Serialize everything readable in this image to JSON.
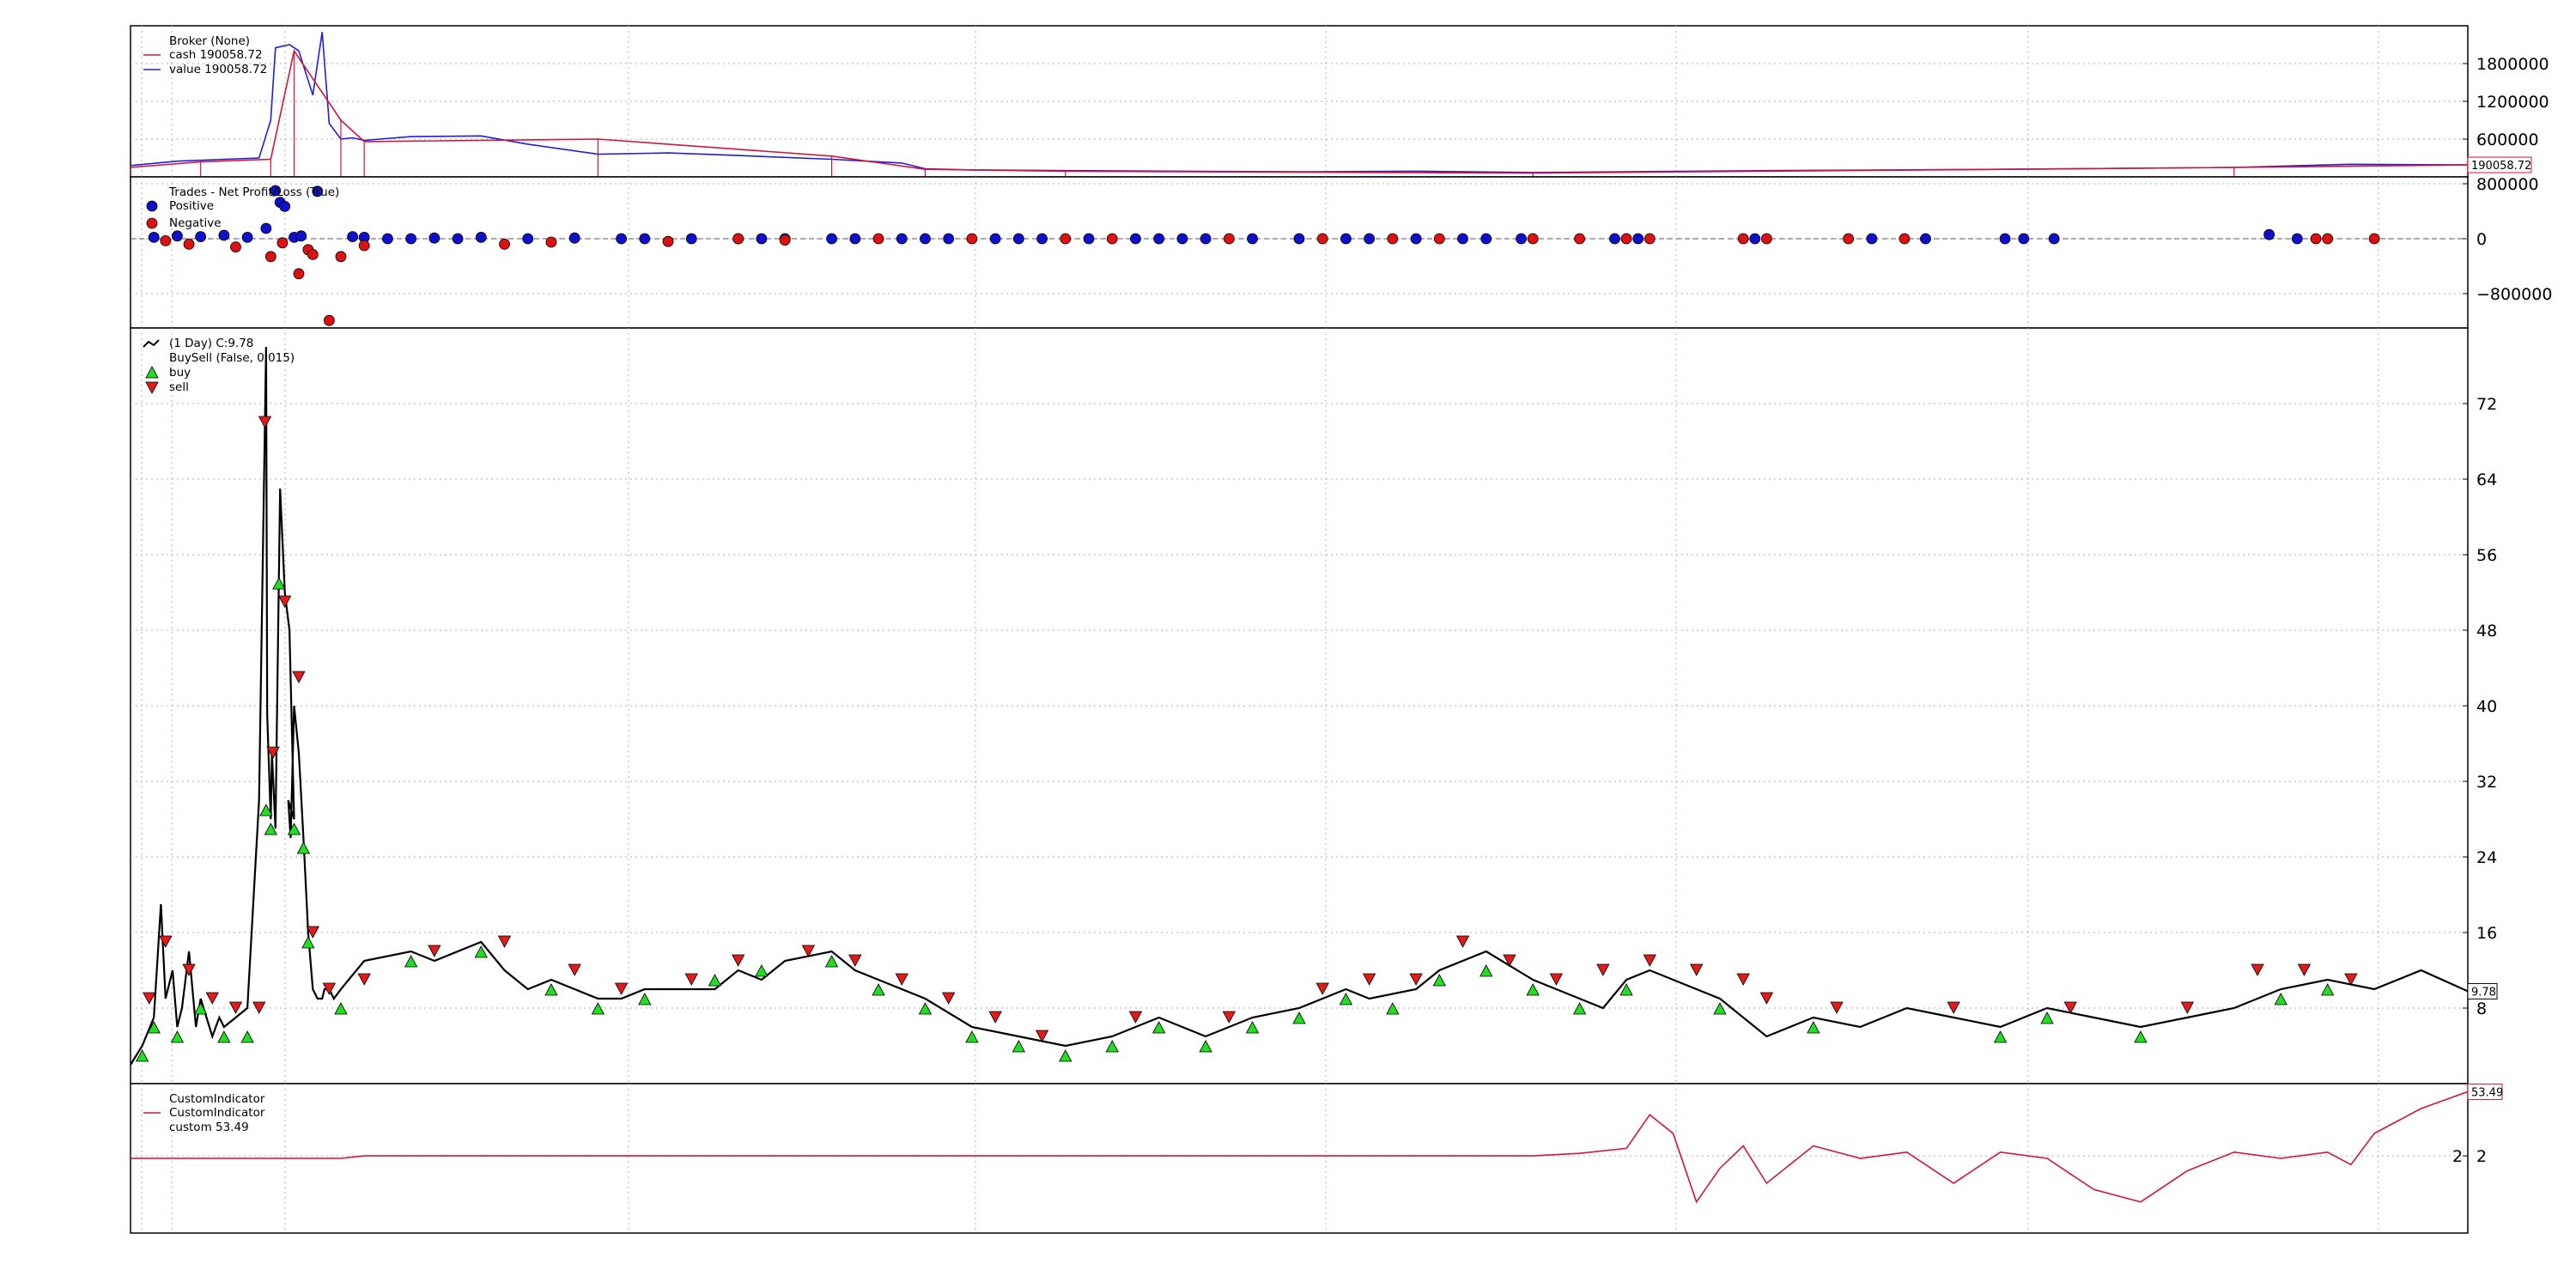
{
  "colors": {
    "cash": "#d2143c",
    "value": "#1f1fd8",
    "close": "#000000",
    "buy": "#22dd22",
    "sell": "#e21a1a",
    "positive": "#1010cc",
    "negative": "#dd1111",
    "custom": "#d2143c",
    "grid": "#b0b0b0"
  },
  "chart_data": [
    {
      "id": "broker",
      "type": "line",
      "title": "Broker (None)",
      "legend": [
        {
          "label": "cash 190058.72",
          "color": "#d2143c"
        },
        {
          "label": "value 190058.72",
          "color": "#1f1fd8"
        }
      ],
      "ylim": [
        0,
        2400000
      ],
      "yticks": [
        600000,
        1200000,
        1800000
      ],
      "ytick_labels": [
        "600000",
        "1200000",
        "1800000"
      ],
      "last_value_label": "190058.72",
      "series": [
        {
          "name": "value",
          "x": [
            0,
            0.02,
            0.04,
            0.055,
            0.06,
            0.062,
            0.068,
            0.072,
            0.078,
            0.082,
            0.085,
            0.09,
            0.095,
            0.1,
            0.12,
            0.15,
            0.17,
            0.2,
            0.23,
            0.26,
            0.3,
            0.33,
            0.34,
            0.36,
            0.4,
            0.45,
            0.5,
            0.55,
            0.6,
            0.7,
            0.8,
            0.9,
            0.95,
            1.0
          ],
          "values": [
            180000,
            250000,
            280000,
            300000,
            900000,
            2050000,
            2100000,
            2000000,
            1300000,
            2300000,
            850000,
            600000,
            620000,
            580000,
            640000,
            650000,
            520000,
            360000,
            380000,
            340000,
            280000,
            220000,
            130000,
            110000,
            100000,
            90000,
            80000,
            90000,
            70000,
            100000,
            120000,
            150000,
            200000,
            190058
          ]
        },
        {
          "name": "cash",
          "x": [
            0,
            0.03,
            0.06,
            0.07,
            0.09,
            0.1,
            0.2,
            0.3,
            0.34,
            0.4,
            0.6,
            0.9,
            1.0
          ],
          "values": [
            150000,
            240000,
            280000,
            2000000,
            900000,
            560000,
            600000,
            330000,
            120000,
            90000,
            60000,
            150000,
            190058
          ]
        }
      ]
    },
    {
      "id": "trades",
      "type": "scatter",
      "title": "Trades - Net Profit/Loss (True)",
      "legend": [
        {
          "label": "Positive",
          "color": "#1010cc"
        },
        {
          "label": "Negative",
          "color": "#dd1111"
        }
      ],
      "ylim": [
        -1300000,
        900000
      ],
      "yticks": [
        -800000,
        0,
        800000
      ],
      "ytick_labels": [
        "−800000",
        "0",
        "800000"
      ],
      "positive_points": [
        [
          0.01,
          20000
        ],
        [
          0.02,
          40000
        ],
        [
          0.03,
          30000
        ],
        [
          0.04,
          50000
        ],
        [
          0.05,
          20000
        ],
        [
          0.058,
          150000
        ],
        [
          0.062,
          700000
        ],
        [
          0.064,
          530000
        ],
        [
          0.066,
          470000
        ],
        [
          0.07,
          20000
        ],
        [
          0.073,
          40000
        ],
        [
          0.08,
          690000
        ],
        [
          0.095,
          30000
        ],
        [
          0.1,
          20000
        ],
        [
          0.11,
          0
        ],
        [
          0.12,
          0
        ],
        [
          0.13,
          10000
        ],
        [
          0.14,
          0
        ],
        [
          0.15,
          20000
        ],
        [
          0.17,
          0
        ],
        [
          0.19,
          10000
        ],
        [
          0.21,
          0
        ],
        [
          0.22,
          0
        ],
        [
          0.24,
          0
        ],
        [
          0.26,
          0
        ],
        [
          0.27,
          0
        ],
        [
          0.28,
          0
        ],
        [
          0.3,
          0
        ],
        [
          0.31,
          0
        ],
        [
          0.33,
          0
        ],
        [
          0.34,
          0
        ],
        [
          0.35,
          0
        ],
        [
          0.37,
          0
        ],
        [
          0.38,
          0
        ],
        [
          0.39,
          0
        ],
        [
          0.41,
          0
        ],
        [
          0.43,
          0
        ],
        [
          0.44,
          0
        ],
        [
          0.45,
          0
        ],
        [
          0.46,
          0
        ],
        [
          0.48,
          0
        ],
        [
          0.5,
          0
        ],
        [
          0.52,
          0
        ],
        [
          0.53,
          0
        ],
        [
          0.55,
          0
        ],
        [
          0.57,
          0
        ],
        [
          0.58,
          0
        ],
        [
          0.595,
          0
        ],
        [
          0.635,
          0
        ],
        [
          0.645,
          0
        ],
        [
          0.695,
          0
        ],
        [
          0.745,
          0
        ],
        [
          0.768,
          0
        ],
        [
          0.802,
          0
        ],
        [
          0.81,
          0
        ],
        [
          0.823,
          0
        ],
        [
          0.915,
          60000
        ],
        [
          0.927,
          0
        ]
      ],
      "negative_points": [
        [
          0.015,
          -30000
        ],
        [
          0.025,
          -80000
        ],
        [
          0.045,
          -120000
        ],
        [
          0.06,
          -260000
        ],
        [
          0.065,
          -60000
        ],
        [
          0.072,
          -510000
        ],
        [
          0.076,
          -160000
        ],
        [
          0.078,
          -230000
        ],
        [
          0.085,
          -1190000
        ],
        [
          0.09,
          -260000
        ],
        [
          0.1,
          -100000
        ],
        [
          0.16,
          -80000
        ],
        [
          0.18,
          -50000
        ],
        [
          0.23,
          -40000
        ],
        [
          0.26,
          0
        ],
        [
          0.28,
          -20000
        ],
        [
          0.32,
          0
        ],
        [
          0.36,
          0
        ],
        [
          0.4,
          0
        ],
        [
          0.42,
          0
        ],
        [
          0.47,
          0
        ],
        [
          0.51,
          0
        ],
        [
          0.54,
          0
        ],
        [
          0.56,
          0
        ],
        [
          0.6,
          0
        ],
        [
          0.62,
          0
        ],
        [
          0.64,
          0
        ],
        [
          0.65,
          0
        ],
        [
          0.69,
          0
        ],
        [
          0.7,
          0
        ],
        [
          0.735,
          0
        ],
        [
          0.759,
          0
        ],
        [
          0.935,
          0
        ],
        [
          0.94,
          0
        ],
        [
          0.96,
          0
        ]
      ]
    },
    {
      "id": "price",
      "type": "line",
      "title": "(1 Day) C:9.78",
      "legend": [
        {
          "label": "(1 Day) C:9.78",
          "color": "#000000",
          "marker": "line"
        },
        {
          "label": "BuySell (False, 0.015)",
          "color": "#000000",
          "marker": "none"
        },
        {
          "label": "buy",
          "color": "#22dd22",
          "marker": "triangle-up"
        },
        {
          "label": "sell",
          "color": "#e21a1a",
          "marker": "triangle-down"
        }
      ],
      "ylim": [
        0,
        80
      ],
      "yticks": [
        8,
        16,
        24,
        32,
        40,
        48,
        56,
        64,
        72
      ],
      "ytick_labels": [
        "8",
        "16",
        "24",
        "32",
        "40",
        "48",
        "56",
        "64",
        "72"
      ],
      "last_value_label": "9.78",
      "series": [
        {
          "name": "close",
          "x": [
            0,
            0.005,
            0.01,
            0.013,
            0.015,
            0.018,
            0.02,
            0.022,
            0.025,
            0.028,
            0.03,
            0.035,
            0.038,
            0.04,
            0.045,
            0.05,
            0.055,
            0.058,
            0.0585,
            0.06,
            0.0605,
            0.062,
            0.064,
            0.066,
            0.068,
            0.07,
            0.0675,
            0.0685,
            0.07,
            0.072,
            0.074,
            0.076,
            0.078,
            0.08,
            0.082,
            0.083,
            0.085,
            0.087,
            0.09,
            0.1,
            0.12,
            0.13,
            0.15,
            0.16,
            0.17,
            0.18,
            0.2,
            0.21,
            0.22,
            0.25,
            0.26,
            0.27,
            0.28,
            0.3,
            0.31,
            0.32,
            0.34,
            0.36,
            0.38,
            0.4,
            0.42,
            0.44,
            0.46,
            0.48,
            0.5,
            0.52,
            0.53,
            0.55,
            0.56,
            0.58,
            0.6,
            0.62,
            0.63,
            0.64,
            0.65,
            0.66,
            0.67,
            0.68,
            0.7,
            0.72,
            0.74,
            0.76,
            0.78,
            0.8,
            0.82,
            0.84,
            0.86,
            0.88,
            0.9,
            0.92,
            0.94,
            0.96,
            0.98,
            1.0
          ],
          "values": [
            2,
            4,
            7,
            19,
            9,
            12,
            6,
            8,
            14,
            6,
            9,
            5,
            7,
            6,
            7,
            8,
            30,
            78,
            39,
            28,
            35,
            27,
            63,
            52,
            48,
            28,
            30,
            26,
            40,
            35,
            26,
            16,
            10,
            9,
            9,
            10,
            10,
            9,
            10,
            13,
            14,
            13,
            15,
            12,
            10,
            11,
            9,
            9,
            10,
            10,
            12,
            11,
            13,
            14,
            12,
            11,
            9,
            6,
            5,
            4,
            5,
            7,
            5,
            7,
            8,
            10,
            9,
            10,
            12,
            14,
            11,
            9,
            8,
            11,
            12,
            11,
            10,
            9,
            5,
            7,
            6,
            8,
            7,
            6,
            8,
            7,
            6,
            7,
            8,
            10,
            11,
            10,
            12,
            9.78
          ]
        }
      ],
      "buy_markers": [
        [
          0.005,
          4
        ],
        [
          0.01,
          7
        ],
        [
          0.02,
          6
        ],
        [
          0.03,
          9
        ],
        [
          0.04,
          6
        ],
        [
          0.05,
          6
        ],
        [
          0.058,
          30
        ],
        [
          0.06,
          28
        ],
        [
          0.0635,
          54
        ],
        [
          0.07,
          28
        ],
        [
          0.074,
          26
        ],
        [
          0.076,
          16
        ],
        [
          0.09,
          9
        ],
        [
          0.12,
          14
        ],
        [
          0.15,
          15
        ],
        [
          0.18,
          11
        ],
        [
          0.2,
          9
        ],
        [
          0.22,
          10
        ],
        [
          0.25,
          12
        ],
        [
          0.27,
          13
        ],
        [
          0.3,
          14
        ],
        [
          0.32,
          11
        ],
        [
          0.34,
          9
        ],
        [
          0.36,
          6
        ],
        [
          0.38,
          5
        ],
        [
          0.4,
          4
        ],
        [
          0.42,
          5
        ],
        [
          0.44,
          7
        ],
        [
          0.46,
          5
        ],
        [
          0.48,
          7
        ],
        [
          0.5,
          8
        ],
        [
          0.52,
          10
        ],
        [
          0.54,
          9
        ],
        [
          0.56,
          12
        ],
        [
          0.58,
          13
        ],
        [
          0.6,
          11
        ],
        [
          0.62,
          9
        ],
        [
          0.64,
          11
        ],
        [
          0.68,
          9
        ],
        [
          0.72,
          7
        ],
        [
          0.8,
          6
        ],
        [
          0.82,
          8
        ],
        [
          0.86,
          6
        ],
        [
          0.92,
          10
        ],
        [
          0.94,
          11
        ]
      ],
      "sell_markers": [
        [
          0.008,
          8
        ],
        [
          0.015,
          14
        ],
        [
          0.025,
          11
        ],
        [
          0.035,
          8
        ],
        [
          0.045,
          7
        ],
        [
          0.055,
          7
        ],
        [
          0.0575,
          69
        ],
        [
          0.061,
          34
        ],
        [
          0.066,
          50
        ],
        [
          0.072,
          42
        ],
        [
          0.078,
          15
        ],
        [
          0.085,
          9
        ],
        [
          0.1,
          10
        ],
        [
          0.13,
          13
        ],
        [
          0.16,
          14
        ],
        [
          0.19,
          11
        ],
        [
          0.21,
          9
        ],
        [
          0.24,
          10
        ],
        [
          0.26,
          12
        ],
        [
          0.29,
          13
        ],
        [
          0.31,
          12
        ],
        [
          0.33,
          10
        ],
        [
          0.35,
          8
        ],
        [
          0.37,
          6
        ],
        [
          0.39,
          4
        ],
        [
          0.43,
          6
        ],
        [
          0.47,
          6
        ],
        [
          0.51,
          9
        ],
        [
          0.53,
          10
        ],
        [
          0.55,
          10
        ],
        [
          0.57,
          14
        ],
        [
          0.59,
          12
        ],
        [
          0.61,
          10
        ],
        [
          0.63,
          11
        ],
        [
          0.65,
          12
        ],
        [
          0.67,
          11
        ],
        [
          0.69,
          10
        ],
        [
          0.7,
          8
        ],
        [
          0.73,
          7
        ],
        [
          0.78,
          7
        ],
        [
          0.83,
          7
        ],
        [
          0.88,
          7
        ],
        [
          0.91,
          11
        ],
        [
          0.93,
          11
        ],
        [
          0.95,
          10
        ]
      ]
    },
    {
      "id": "custom",
      "type": "line",
      "title": "CustomIndicator",
      "legend": [
        {
          "label": "CustomIndicator",
          "color": "#d2143c"
        },
        {
          "label": "custom 53.49",
          "color": "#d2143c",
          "marker": "none"
        }
      ],
      "ylim": [
        -60,
        60
      ],
      "yticks": [
        2
      ],
      "ytick_labels": [
        "2"
      ],
      "mid_label": "2",
      "last_value_label": "53.49",
      "series": [
        {
          "name": "custom",
          "x": [
            0,
            0.02,
            0.04,
            0.06,
            0.08,
            0.09,
            0.1,
            0.2,
            0.3,
            0.4,
            0.5,
            0.6,
            0.62,
            0.64,
            0.65,
            0.66,
            0.67,
            0.68,
            0.69,
            0.7,
            0.72,
            0.74,
            0.76,
            0.78,
            0.8,
            0.82,
            0.84,
            0.86,
            0.88,
            0.9,
            0.92,
            0.94,
            0.95,
            0.96,
            0.97,
            0.98,
            1.0
          ],
          "values": [
            0,
            0,
            0,
            0,
            0,
            0,
            2,
            2,
            2,
            2,
            2,
            2,
            4,
            8,
            35,
            20,
            -35,
            -8,
            10,
            -20,
            10,
            0,
            5,
            -20,
            5,
            0,
            -25,
            -35,
            -10,
            5,
            0,
            5,
            -5,
            20,
            30,
            40,
            53.49
          ]
        }
      ]
    }
  ]
}
